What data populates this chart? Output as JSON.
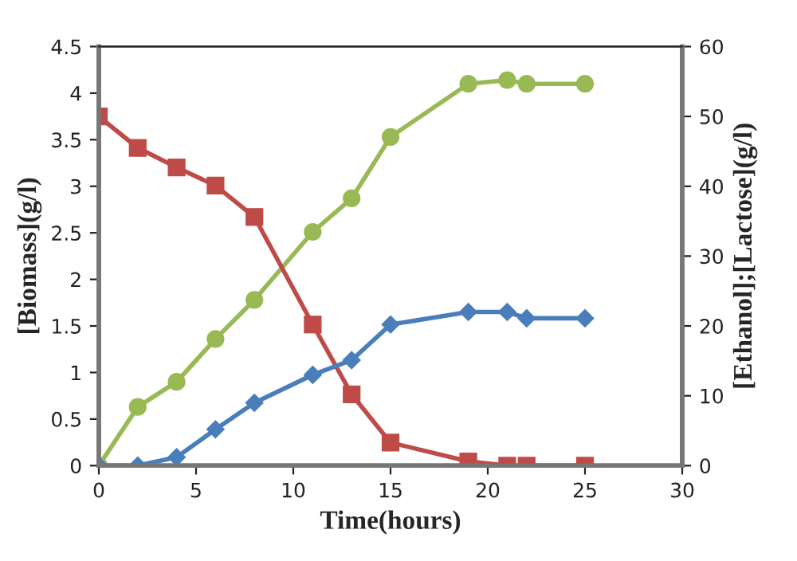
{
  "chart_data": {
    "type": "line",
    "xlabel": "Time(hours)",
    "ylabel": "[Biomass](g/l)",
    "y2label": "[Ethanol];[Lactose](g/l)",
    "x": [
      0,
      2,
      4,
      6,
      8,
      11,
      13,
      15,
      19,
      21,
      22,
      25
    ],
    "series": [
      {
        "color": "#98b954",
        "marker": "circle",
        "values": [
          0,
          0.63,
          0.9,
          1.36,
          1.78,
          2.51,
          2.87,
          3.53,
          4.1,
          4.14,
          4.1,
          4.1
        ]
      },
      {
        "color": "#be4b48",
        "marker": "square",
        "axis": "y2",
        "values": [
          50,
          45.5,
          42.7,
          40.1,
          35.6,
          20.2,
          10.2,
          3.3,
          0.6,
          0,
          0,
          0
        ]
      },
      {
        "color": "#4a7ebb",
        "marker": "diamond",
        "axis": "y2",
        "values": [
          0,
          0,
          1.2,
          5.2,
          9,
          13,
          15.1,
          20.2,
          22,
          22,
          21.1,
          21.1
        ]
      }
    ],
    "xlim": [
      0,
      30
    ],
    "xticks": [
      0,
      5,
      10,
      15,
      20,
      25,
      30
    ],
    "ylim": [
      0,
      4.5
    ],
    "yticks": [
      0,
      0.5,
      1,
      1.5,
      2,
      2.5,
      3,
      3.5,
      4,
      4.5
    ],
    "y2lim": [
      0,
      60
    ],
    "y2ticks": [
      0,
      10,
      20,
      30,
      40,
      50,
      60
    ],
    "grid": false,
    "legend": false,
    "line_style": "solid"
  }
}
